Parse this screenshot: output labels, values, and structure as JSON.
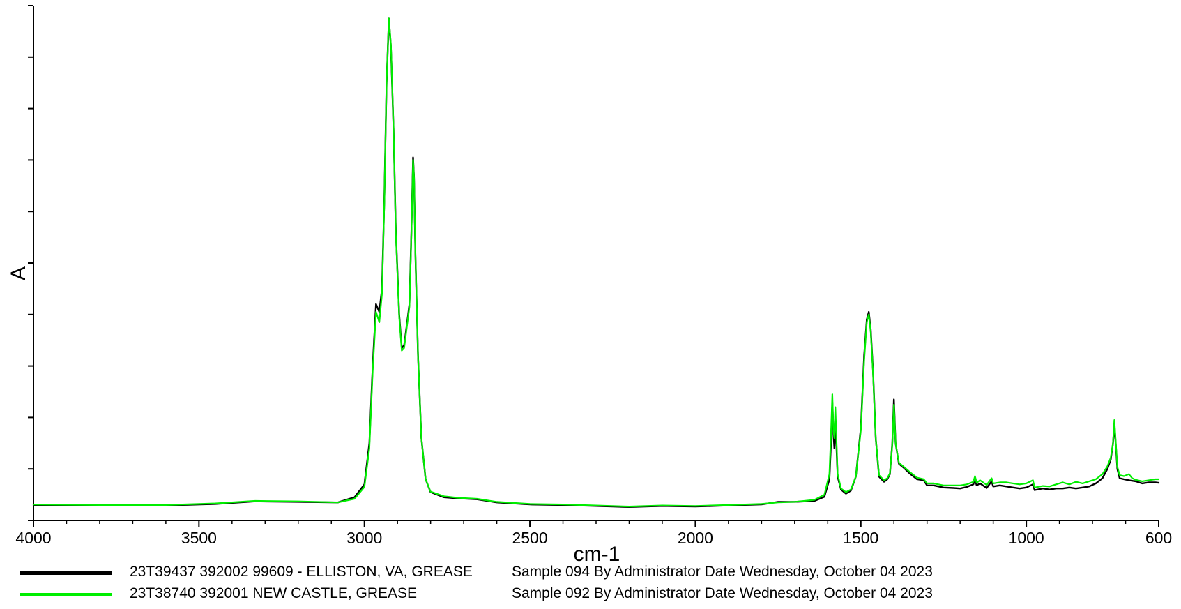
{
  "chart_data": {
    "type": "line",
    "title": "",
    "xlabel": "cm-1",
    "ylabel": "A",
    "xlim": [
      4000,
      600
    ],
    "x_reversed": true,
    "ylim": [
      0,
      1.0
    ],
    "y_tick_labels_shown": false,
    "x_ticks": [
      4000,
      3500,
      3000,
      2500,
      2000,
      1500,
      1000,
      600
    ],
    "grid": false,
    "legend_position": "bottom",
    "series": [
      {
        "name": "23T39437 392002 99609 - ELLISTON, VA, GREASE",
        "info": "Sample 094 By Administrator Date Wednesday, October 04 2023",
        "color": "#000000",
        "points": [
          [
            4000,
            0.03
          ],
          [
            3800,
            0.029
          ],
          [
            3600,
            0.029
          ],
          [
            3450,
            0.032
          ],
          [
            3330,
            0.037
          ],
          [
            3200,
            0.036
          ],
          [
            3080,
            0.035
          ],
          [
            3030,
            0.045
          ],
          [
            3000,
            0.07
          ],
          [
            2985,
            0.15
          ],
          [
            2975,
            0.3
          ],
          [
            2965,
            0.42
          ],
          [
            2955,
            0.405
          ],
          [
            2947,
            0.45
          ],
          [
            2940,
            0.62
          ],
          [
            2933,
            0.85
          ],
          [
            2926,
            0.975
          ],
          [
            2920,
            0.92
          ],
          [
            2912,
            0.76
          ],
          [
            2905,
            0.56
          ],
          [
            2895,
            0.4
          ],
          [
            2887,
            0.335
          ],
          [
            2880,
            0.34
          ],
          [
            2872,
            0.38
          ],
          [
            2864,
            0.42
          ],
          [
            2858,
            0.56
          ],
          [
            2853,
            0.705
          ],
          [
            2850,
            0.665
          ],
          [
            2846,
            0.52
          ],
          [
            2838,
            0.32
          ],
          [
            2828,
            0.16
          ],
          [
            2815,
            0.08
          ],
          [
            2800,
            0.055
          ],
          [
            2760,
            0.045
          ],
          [
            2720,
            0.043
          ],
          [
            2660,
            0.041
          ],
          [
            2600,
            0.035
          ],
          [
            2500,
            0.031
          ],
          [
            2400,
            0.03
          ],
          [
            2300,
            0.028
          ],
          [
            2200,
            0.026
          ],
          [
            2100,
            0.028
          ],
          [
            2000,
            0.027
          ],
          [
            1900,
            0.029
          ],
          [
            1800,
            0.031
          ],
          [
            1750,
            0.036
          ],
          [
            1700,
            0.036
          ],
          [
            1640,
            0.038
          ],
          [
            1610,
            0.046
          ],
          [
            1595,
            0.08
          ],
          [
            1590,
            0.15
          ],
          [
            1586,
            0.23
          ],
          [
            1583,
            0.17
          ],
          [
            1580,
            0.14
          ],
          [
            1577,
            0.19
          ],
          [
            1574,
            0.15
          ],
          [
            1570,
            0.085
          ],
          [
            1560,
            0.06
          ],
          [
            1545,
            0.052
          ],
          [
            1530,
            0.058
          ],
          [
            1515,
            0.085
          ],
          [
            1500,
            0.18
          ],
          [
            1490,
            0.32
          ],
          [
            1482,
            0.39
          ],
          [
            1476,
            0.405
          ],
          [
            1470,
            0.37
          ],
          [
            1463,
            0.29
          ],
          [
            1455,
            0.16
          ],
          [
            1445,
            0.085
          ],
          [
            1430,
            0.075
          ],
          [
            1420,
            0.08
          ],
          [
            1412,
            0.09
          ],
          [
            1405,
            0.15
          ],
          [
            1400,
            0.235
          ],
          [
            1395,
            0.15
          ],
          [
            1385,
            0.11
          ],
          [
            1370,
            0.102
          ],
          [
            1350,
            0.09
          ],
          [
            1330,
            0.08
          ],
          [
            1310,
            0.078
          ],
          [
            1300,
            0.068
          ],
          [
            1280,
            0.068
          ],
          [
            1250,
            0.064
          ],
          [
            1220,
            0.063
          ],
          [
            1200,
            0.062
          ],
          [
            1180,
            0.065
          ],
          [
            1160,
            0.07
          ],
          [
            1155,
            0.08
          ],
          [
            1150,
            0.068
          ],
          [
            1140,
            0.072
          ],
          [
            1120,
            0.063
          ],
          [
            1105,
            0.076
          ],
          [
            1100,
            0.066
          ],
          [
            1080,
            0.068
          ],
          [
            1060,
            0.066
          ],
          [
            1040,
            0.064
          ],
          [
            1020,
            0.062
          ],
          [
            1000,
            0.064
          ],
          [
            980,
            0.07
          ],
          [
            975,
            0.059
          ],
          [
            950,
            0.062
          ],
          [
            930,
            0.06
          ],
          [
            910,
            0.062
          ],
          [
            890,
            0.062
          ],
          [
            870,
            0.064
          ],
          [
            850,
            0.062
          ],
          [
            830,
            0.064
          ],
          [
            810,
            0.066
          ],
          [
            790,
            0.072
          ],
          [
            770,
            0.082
          ],
          [
            755,
            0.1
          ],
          [
            745,
            0.118
          ],
          [
            738,
            0.15
          ],
          [
            734,
            0.188
          ],
          [
            730,
            0.15
          ],
          [
            725,
            0.1
          ],
          [
            718,
            0.082
          ],
          [
            705,
            0.08
          ],
          [
            690,
            0.078
          ],
          [
            670,
            0.076
          ],
          [
            650,
            0.072
          ],
          [
            630,
            0.074
          ],
          [
            610,
            0.074
          ],
          [
            600,
            0.073
          ]
        ]
      },
      {
        "name": "23T38740 392001 NEW CASTLE, GREASE",
        "info": "Sample 092 By Administrator Date Wednesday, October 04 2023",
        "color": "#00ee00",
        "points": [
          [
            4000,
            0.031
          ],
          [
            3800,
            0.03
          ],
          [
            3600,
            0.03
          ],
          [
            3450,
            0.033
          ],
          [
            3330,
            0.038
          ],
          [
            3200,
            0.037
          ],
          [
            3080,
            0.035
          ],
          [
            3030,
            0.042
          ],
          [
            3000,
            0.065
          ],
          [
            2985,
            0.14
          ],
          [
            2975,
            0.29
          ],
          [
            2965,
            0.405
          ],
          [
            2955,
            0.385
          ],
          [
            2947,
            0.44
          ],
          [
            2940,
            0.615
          ],
          [
            2933,
            0.85
          ],
          [
            2926,
            0.975
          ],
          [
            2920,
            0.925
          ],
          [
            2912,
            0.76
          ],
          [
            2905,
            0.555
          ],
          [
            2895,
            0.395
          ],
          [
            2887,
            0.33
          ],
          [
            2880,
            0.335
          ],
          [
            2872,
            0.375
          ],
          [
            2864,
            0.415
          ],
          [
            2858,
            0.555
          ],
          [
            2853,
            0.7
          ],
          [
            2850,
            0.665
          ],
          [
            2846,
            0.52
          ],
          [
            2838,
            0.32
          ],
          [
            2828,
            0.16
          ],
          [
            2815,
            0.08
          ],
          [
            2800,
            0.056
          ],
          [
            2760,
            0.047
          ],
          [
            2720,
            0.044
          ],
          [
            2660,
            0.042
          ],
          [
            2600,
            0.036
          ],
          [
            2500,
            0.032
          ],
          [
            2400,
            0.031
          ],
          [
            2300,
            0.029
          ],
          [
            2200,
            0.027
          ],
          [
            2100,
            0.029
          ],
          [
            2000,
            0.028
          ],
          [
            1900,
            0.03
          ],
          [
            1800,
            0.032
          ],
          [
            1750,
            0.035
          ],
          [
            1700,
            0.036
          ],
          [
            1640,
            0.04
          ],
          [
            1610,
            0.05
          ],
          [
            1595,
            0.09
          ],
          [
            1590,
            0.17
          ],
          [
            1586,
            0.245
          ],
          [
            1583,
            0.175
          ],
          [
            1580,
            0.16
          ],
          [
            1577,
            0.22
          ],
          [
            1574,
            0.165
          ],
          [
            1570,
            0.09
          ],
          [
            1560,
            0.062
          ],
          [
            1545,
            0.055
          ],
          [
            1530,
            0.06
          ],
          [
            1515,
            0.085
          ],
          [
            1500,
            0.175
          ],
          [
            1490,
            0.31
          ],
          [
            1482,
            0.385
          ],
          [
            1476,
            0.4
          ],
          [
            1470,
            0.365
          ],
          [
            1463,
            0.285
          ],
          [
            1455,
            0.16
          ],
          [
            1445,
            0.088
          ],
          [
            1430,
            0.078
          ],
          [
            1420,
            0.082
          ],
          [
            1412,
            0.092
          ],
          [
            1405,
            0.148
          ],
          [
            1400,
            0.225
          ],
          [
            1395,
            0.15
          ],
          [
            1385,
            0.112
          ],
          [
            1370,
            0.104
          ],
          [
            1350,
            0.093
          ],
          [
            1330,
            0.083
          ],
          [
            1310,
            0.08
          ],
          [
            1300,
            0.072
          ],
          [
            1280,
            0.072
          ],
          [
            1250,
            0.068
          ],
          [
            1220,
            0.068
          ],
          [
            1200,
            0.068
          ],
          [
            1180,
            0.07
          ],
          [
            1160,
            0.075
          ],
          [
            1155,
            0.086
          ],
          [
            1150,
            0.073
          ],
          [
            1140,
            0.078
          ],
          [
            1120,
            0.069
          ],
          [
            1105,
            0.082
          ],
          [
            1100,
            0.072
          ],
          [
            1080,
            0.074
          ],
          [
            1060,
            0.074
          ],
          [
            1040,
            0.072
          ],
          [
            1020,
            0.07
          ],
          [
            1000,
            0.072
          ],
          [
            980,
            0.078
          ],
          [
            975,
            0.064
          ],
          [
            950,
            0.067
          ],
          [
            930,
            0.066
          ],
          [
            910,
            0.07
          ],
          [
            890,
            0.074
          ],
          [
            870,
            0.07
          ],
          [
            850,
            0.075
          ],
          [
            830,
            0.072
          ],
          [
            810,
            0.076
          ],
          [
            790,
            0.08
          ],
          [
            770,
            0.09
          ],
          [
            755,
            0.105
          ],
          [
            745,
            0.122
          ],
          [
            738,
            0.15
          ],
          [
            734,
            0.195
          ],
          [
            730,
            0.155
          ],
          [
            725,
            0.104
          ],
          [
            718,
            0.088
          ],
          [
            705,
            0.086
          ],
          [
            690,
            0.09
          ],
          [
            680,
            0.082
          ],
          [
            670,
            0.079
          ],
          [
            650,
            0.076
          ],
          [
            630,
            0.078
          ],
          [
            610,
            0.08
          ],
          [
            600,
            0.08
          ]
        ]
      }
    ]
  }
}
